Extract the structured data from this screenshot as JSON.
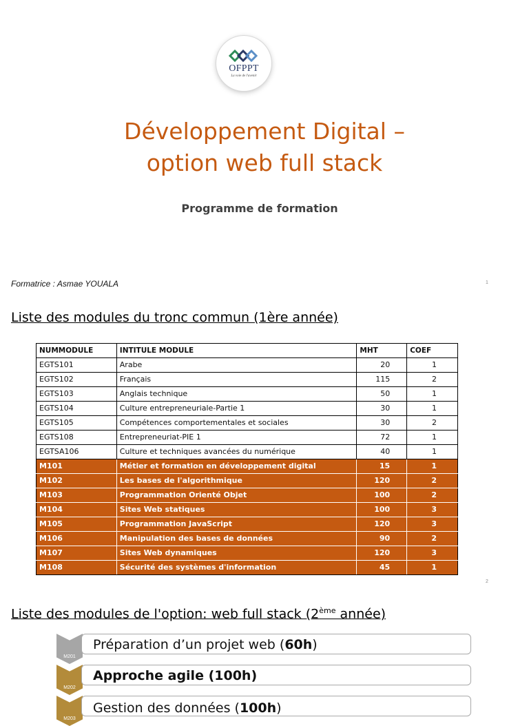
{
  "logo": {
    "brand": "OFPPT",
    "tagline": "La voie de l'avenir"
  },
  "title_line1": "Développement Digital –",
  "title_line2": "option web full stack",
  "subtitle": "Programme de formation",
  "trainer": "Formatrice : Asmae YOUALA",
  "page_numbers": [
    "1",
    "2"
  ],
  "section1_title": "Liste des modules du tronc commun (1ère année)",
  "table": {
    "headers": [
      "NUMMODULE",
      "INTITULE MODULE",
      "MHT",
      "COEF"
    ],
    "rows": [
      [
        "EGTS101",
        "Arabe",
        "20",
        "1"
      ],
      [
        "EGTS102",
        "Français",
        "115",
        "2"
      ],
      [
        "EGTS103",
        "Anglais technique",
        "50",
        "1"
      ],
      [
        "EGTS104",
        "Culture entrepreneuriale-Partie 1",
        "30",
        "1"
      ],
      [
        "EGTS105",
        "Compétences comportementales et sociales",
        "30",
        "2"
      ],
      [
        "EGTS108",
        "Entrepreneuriat-PIE 1",
        "72",
        "1"
      ],
      [
        "EGTSA106",
        "Culture et techniques avancées du numérique",
        "40",
        "1"
      ],
      [
        "M101",
        "Métier et formation en développement digital",
        "15",
        "1"
      ],
      [
        "M102",
        "Les bases de l'algorithmique",
        "120",
        "2"
      ],
      [
        "M103",
        "Programmation Orienté Objet",
        "100",
        "2"
      ],
      [
        "M104",
        "Sites Web statiques",
        "100",
        "3"
      ],
      [
        "M105",
        "Programmation JavaScript",
        "120",
        "3"
      ],
      [
        "M106",
        "Manipulation des bases de données",
        "90",
        "2"
      ],
      [
        "M107",
        "Sites Web dynamiques",
        "120",
        "3"
      ],
      [
        "M108",
        "Sécurité des systèmes d'information",
        "45",
        "1"
      ]
    ],
    "highlight_color": "#c55a11"
  },
  "section2_title_pre": "Liste des modules de l'option: web full stack (2",
  "section2_title_sup": "ème",
  "section2_title_post": " année)",
  "options": [
    {
      "code": "M201",
      "pre": "Préparation d’un projet web (",
      "bold": "60h",
      "post": ")",
      "color": "#a6a6a6"
    },
    {
      "code": "M202",
      "pre": "",
      "bold": "Approche agile (100h)",
      "post": "",
      "color": "#b38b3a"
    },
    {
      "code": "M203",
      "pre": "Gestion des données (",
      "bold": "100h",
      "post": ")",
      "color": "#b38b3a"
    }
  ]
}
